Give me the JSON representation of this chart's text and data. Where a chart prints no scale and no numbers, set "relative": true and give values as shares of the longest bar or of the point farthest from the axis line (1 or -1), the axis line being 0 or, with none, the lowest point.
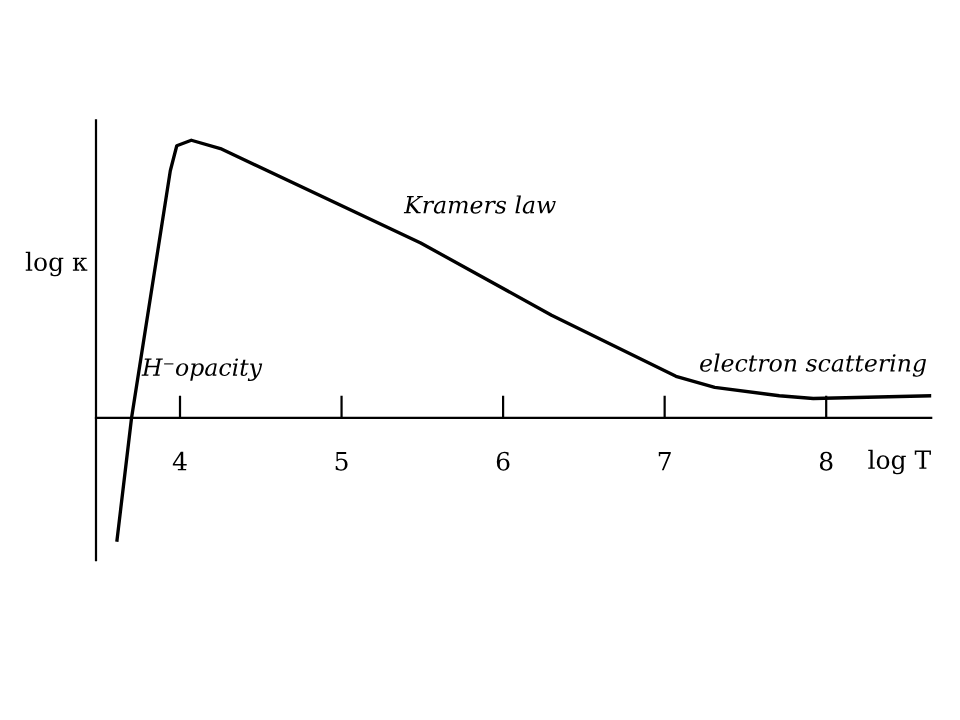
{
  "chart_data": {
    "type": "line",
    "relative": true,
    "xlabel": "log T",
    "ylabel": "log κ",
    "x": [
      3.61,
      3.7,
      3.94,
      3.98,
      4.07,
      4.25,
      5.49,
      6.3,
      7.07,
      7.31,
      7.71,
      7.92,
      8.65
    ],
    "series": [
      {
        "color": "#000000",
        "values": [
          -0.44,
          0,
          0.89,
          0.98,
          1.0,
          0.97,
          0.63,
          0.37,
          0.15,
          0.11,
          0.08,
          0.07,
          0.08
        ]
      }
    ],
    "xlim": [
      3.48,
      8.65
    ],
    "xticks": [
      4,
      5,
      6,
      7,
      8
    ],
    "annotations": [
      "Kramers law",
      "H⁻opacity",
      "electron scattering"
    ],
    "grid": false,
    "legend": false,
    "marker": "none",
    "line_style": "solid"
  }
}
